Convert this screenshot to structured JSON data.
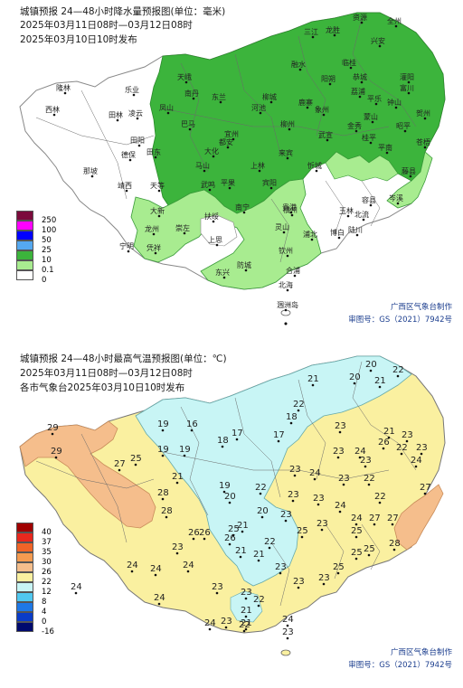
{
  "rain": {
    "title": "城镇预报 24—48小时降水量预报图(单位：毫米)",
    "period": "2025年03月11日08时—03月12日08时",
    "issued": "2025年03月10日10时发布",
    "legend": [
      {
        "label": "250",
        "color": "#7b0a3c"
      },
      {
        "label": "100",
        "color": "#ff00ff"
      },
      {
        "label": "50",
        "color": "#0000ff"
      },
      {
        "label": "25",
        "color": "#55a8f0"
      },
      {
        "label": "10",
        "color": "#3cb43c"
      },
      {
        "label": "0.1",
        "color": "#a8ec90"
      },
      {
        "label": "0",
        "color": "#ffffff"
      }
    ],
    "credit1": "广西区气象台制作",
    "credit2": "审图号：GS（2021）7942号",
    "cities": [
      "资源",
      "全州",
      "三江",
      "龙胜",
      "兴安",
      "融水",
      "临桂",
      "恭城",
      "灌阳",
      "阳朔",
      "荔浦",
      "富川",
      "平乐",
      "钟山",
      "贺州",
      "昭平",
      "蒙山",
      "金秀",
      "象州",
      "武宣",
      "桂平",
      "平南",
      "藤县",
      "岑溪",
      "苍梧",
      "容县",
      "北流",
      "玉林",
      "博白",
      "陆川",
      "浦北",
      "灵山",
      "钦州",
      "防城",
      "东兴",
      "合浦",
      "北海",
      "涠洲岛",
      "隆林",
      "西林",
      "田林",
      "乐业",
      "凌云",
      "田阳",
      "田东",
      "德保",
      "靖西",
      "那坡",
      "大新",
      "天等",
      "龙州",
      "凭祥",
      "宁明",
      "崇左",
      "上思",
      "扶绥",
      "南宁",
      "宾阳",
      "上林",
      "马山",
      "武鸣",
      "横州",
      "贵港",
      "来宾",
      "柳州",
      "柳城",
      "鹿寨",
      "宜州",
      "河池",
      "南丹",
      "天峨",
      "东兰",
      "巴马",
      "凤山",
      "都安",
      "大化",
      "平果",
      "忻城"
    ]
  },
  "temp": {
    "title": "城镇预报 24—48小时最高气温预报图(单位：℃)",
    "period": "2025年03月11日08时—03月12日08时",
    "issued": "各市气象台2025年03月10日10时发布",
    "legend": [
      {
        "label": "40",
        "color": "#a00000"
      },
      {
        "label": "37",
        "color": "#e8281e"
      },
      {
        "label": "35",
        "color": "#f06428"
      },
      {
        "label": "30",
        "color": "#f59b50"
      },
      {
        "label": "26",
        "color": "#f5be8c"
      },
      {
        "label": "22",
        "color": "#faf0a0"
      },
      {
        "label": "12",
        "color": "#c8f5f5"
      },
      {
        "label": "8",
        "color": "#50c8f0"
      },
      {
        "label": "4",
        "color": "#1e78e6"
      },
      {
        "label": "0",
        "color": "#0a3cc8"
      },
      {
        "label": "-16",
        "color": "#000a6e"
      }
    ],
    "credit1": "广西区气象台制作",
    "credit2": "审图号：GS（2021）7942号",
    "values": [
      "29",
      "20",
      "22",
      "21",
      "20",
      "21",
      "22",
      "19",
      "16",
      "18",
      "17",
      "17",
      "21",
      "23",
      "23",
      "19",
      "19",
      "18",
      "22",
      "23",
      "26",
      "24",
      "23",
      "24",
      "29",
      "27",
      "25",
      "21",
      "23",
      "24",
      "23",
      "22",
      "23",
      "22",
      "19",
      "20",
      "22",
      "23",
      "23",
      "24",
      "27",
      "28",
      "28",
      "20",
      "23",
      "23",
      "21",
      "24",
      "25",
      "25",
      "26",
      "26",
      "26",
      "25",
      "27",
      "27",
      "28",
      "21",
      "21",
      "22",
      "25",
      "23",
      "25",
      "25",
      "24",
      "24",
      "23",
      "23",
      "23",
      "23",
      "24",
      "21",
      "22",
      "23",
      "24",
      "23",
      "22",
      "24",
      "21",
      "24",
      "24",
      "23"
    ]
  }
}
